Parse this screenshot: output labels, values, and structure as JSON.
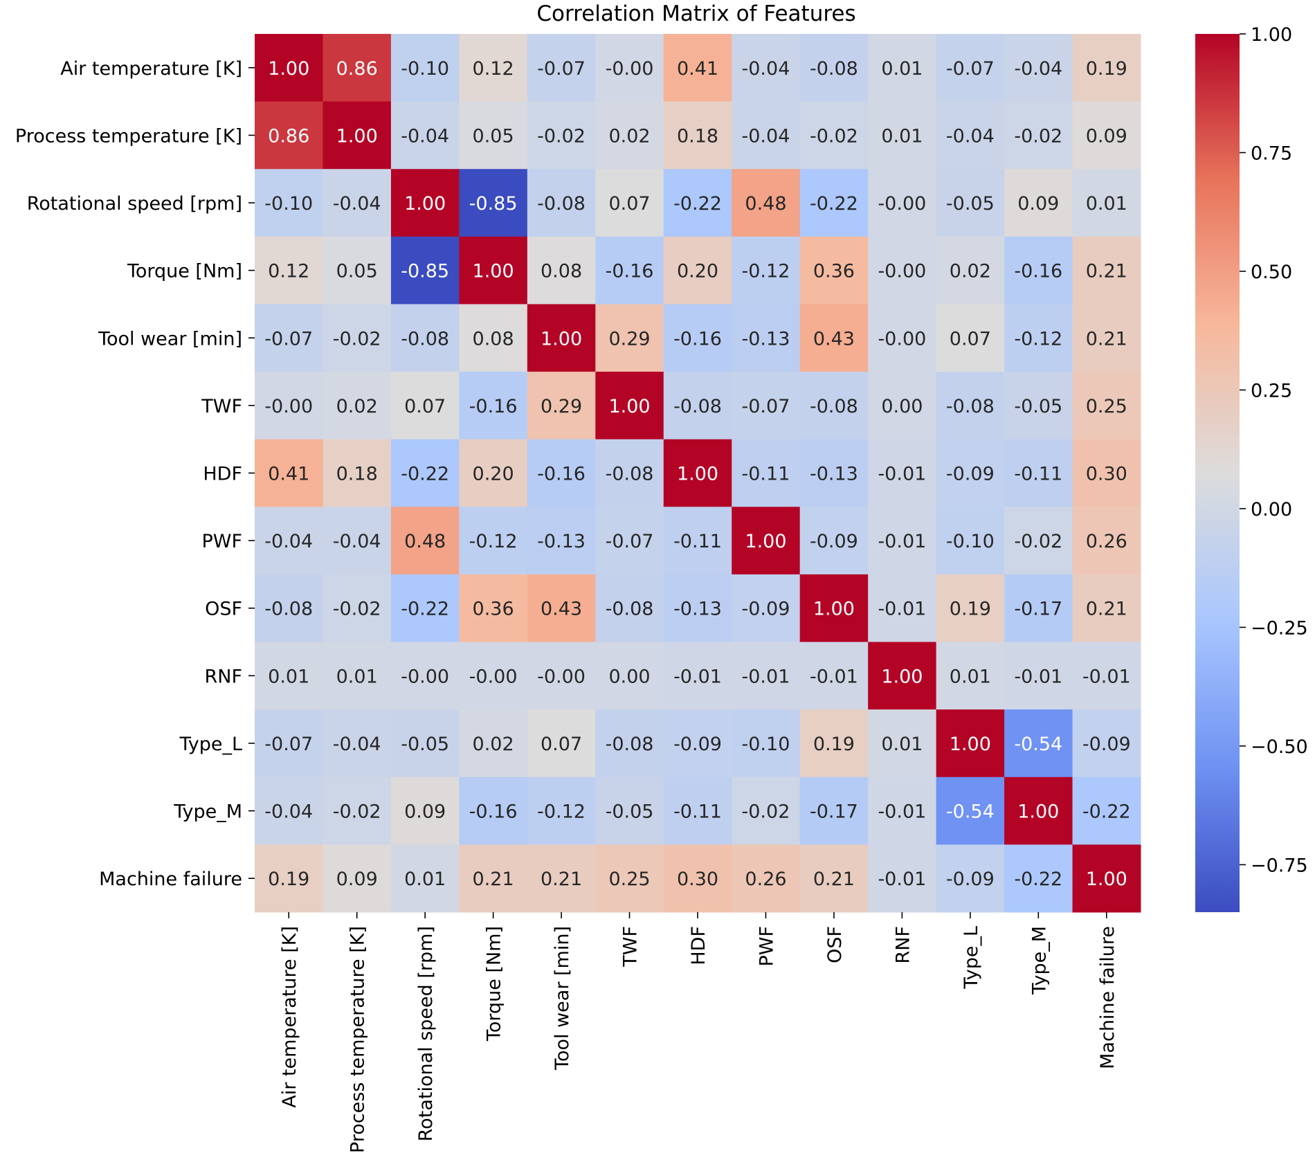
{
  "chart_data": {
    "type": "heatmap",
    "title": "Correlation Matrix of Features",
    "labels": [
      "Air temperature [K]",
      "Process temperature [K]",
      "Rotational speed [rpm]",
      "Torque [Nm]",
      "Tool wear [min]",
      "TWF",
      "HDF",
      "PWF",
      "OSF",
      "RNF",
      "Type_L",
      "Type_M",
      "Machine failure"
    ],
    "matrix": [
      [
        1.0,
        0.86,
        -0.1,
        0.12,
        -0.07,
        -0.0,
        0.41,
        -0.04,
        -0.08,
        0.01,
        -0.07,
        -0.04,
        0.19
      ],
      [
        0.86,
        1.0,
        -0.04,
        0.05,
        -0.02,
        0.02,
        0.18,
        -0.04,
        -0.02,
        0.01,
        -0.04,
        -0.02,
        0.09
      ],
      [
        -0.1,
        -0.04,
        1.0,
        -0.85,
        -0.08,
        0.07,
        -0.22,
        0.48,
        -0.22,
        -0.0,
        -0.05,
        0.09,
        0.01
      ],
      [
        0.12,
        0.05,
        -0.85,
        1.0,
        0.08,
        -0.16,
        0.2,
        -0.12,
        0.36,
        -0.0,
        0.02,
        -0.16,
        0.21
      ],
      [
        -0.07,
        -0.02,
        -0.08,
        0.08,
        1.0,
        0.29,
        -0.16,
        -0.13,
        0.43,
        -0.0,
        0.07,
        -0.12,
        0.21
      ],
      [
        -0.0,
        0.02,
        0.07,
        -0.16,
        0.29,
        1.0,
        -0.08,
        -0.07,
        -0.08,
        0.0,
        -0.08,
        -0.05,
        0.25
      ],
      [
        0.41,
        0.18,
        -0.22,
        0.2,
        -0.16,
        -0.08,
        1.0,
        -0.11,
        -0.13,
        -0.01,
        -0.09,
        -0.11,
        0.3
      ],
      [
        -0.04,
        -0.04,
        0.48,
        -0.12,
        -0.13,
        -0.07,
        -0.11,
        1.0,
        -0.09,
        -0.01,
        -0.1,
        -0.02,
        0.26
      ],
      [
        -0.08,
        -0.02,
        -0.22,
        0.36,
        0.43,
        -0.08,
        -0.13,
        -0.09,
        1.0,
        -0.01,
        0.19,
        -0.17,
        0.21
      ],
      [
        0.01,
        0.01,
        -0.0,
        -0.0,
        -0.0,
        0.0,
        -0.01,
        -0.01,
        -0.01,
        1.0,
        0.01,
        -0.01,
        -0.01
      ],
      [
        -0.07,
        -0.04,
        -0.05,
        0.02,
        0.07,
        -0.08,
        -0.09,
        -0.1,
        0.19,
        0.01,
        1.0,
        -0.54,
        -0.09
      ],
      [
        -0.04,
        -0.02,
        0.09,
        -0.16,
        -0.12,
        -0.05,
        -0.11,
        -0.02,
        -0.17,
        -0.01,
        -0.54,
        1.0,
        -0.22
      ],
      [
        0.19,
        0.09,
        0.01,
        0.21,
        0.21,
        0.25,
        0.3,
        0.26,
        0.21,
        -0.01,
        -0.09,
        -0.22,
        1.0
      ]
    ],
    "cell_labels": [
      [
        "1.00",
        "0.86",
        "-0.10",
        "0.12",
        "-0.07",
        "-0.00",
        "0.41",
        "-0.04",
        "-0.08",
        "0.01",
        "-0.07",
        "-0.04",
        "0.19"
      ],
      [
        "0.86",
        "1.00",
        "-0.04",
        "0.05",
        "-0.02",
        "0.02",
        "0.18",
        "-0.04",
        "-0.02",
        "0.01",
        "-0.04",
        "-0.02",
        "0.09"
      ],
      [
        "-0.10",
        "-0.04",
        "1.00",
        "-0.85",
        "-0.08",
        "0.07",
        "-0.22",
        "0.48",
        "-0.22",
        "-0.00",
        "-0.05",
        "0.09",
        "0.01"
      ],
      [
        "0.12",
        "0.05",
        "-0.85",
        "1.00",
        "0.08",
        "-0.16",
        "0.20",
        "-0.12",
        "0.36",
        "-0.00",
        "0.02",
        "-0.16",
        "0.21"
      ],
      [
        "-0.07",
        "-0.02",
        "-0.08",
        "0.08",
        "1.00",
        "0.29",
        "-0.16",
        "-0.13",
        "0.43",
        "-0.00",
        "0.07",
        "-0.12",
        "0.21"
      ],
      [
        "-0.00",
        "0.02",
        "0.07",
        "-0.16",
        "0.29",
        "1.00",
        "-0.08",
        "-0.07",
        "-0.08",
        "0.00",
        "-0.08",
        "-0.05",
        "0.25"
      ],
      [
        "0.41",
        "0.18",
        "-0.22",
        "0.20",
        "-0.16",
        "-0.08",
        "1.00",
        "-0.11",
        "-0.13",
        "-0.01",
        "-0.09",
        "-0.11",
        "0.30"
      ],
      [
        "-0.04",
        "-0.04",
        "0.48",
        "-0.12",
        "-0.13",
        "-0.07",
        "-0.11",
        "1.00",
        "-0.09",
        "-0.01",
        "-0.10",
        "-0.02",
        "0.26"
      ],
      [
        "-0.08",
        "-0.02",
        "-0.22",
        "0.36",
        "0.43",
        "-0.08",
        "-0.13",
        "-0.09",
        "1.00",
        "-0.01",
        "0.19",
        "-0.17",
        "0.21"
      ],
      [
        "0.01",
        "0.01",
        "-0.00",
        "-0.00",
        "-0.00",
        "0.00",
        "-0.01",
        "-0.01",
        "-0.01",
        "1.00",
        "0.01",
        "-0.01",
        "-0.01"
      ],
      [
        "-0.07",
        "-0.04",
        "-0.05",
        "0.02",
        "0.07",
        "-0.08",
        "-0.09",
        "-0.10",
        "0.19",
        "0.01",
        "1.00",
        "-0.54",
        "-0.09"
      ],
      [
        "-0.04",
        "-0.02",
        "0.09",
        "-0.16",
        "-0.12",
        "-0.05",
        "-0.11",
        "-0.02",
        "-0.17",
        "-0.01",
        "-0.54",
        "1.00",
        "-0.22"
      ],
      [
        "0.19",
        "0.09",
        "0.01",
        "0.21",
        "0.21",
        "0.25",
        "0.30",
        "0.26",
        "0.21",
        "-0.01",
        "-0.09",
        "-0.22",
        "1.00"
      ]
    ],
    "colormap": "coolwarm",
    "colormap_stops": [
      "#3b4cc0",
      "#6f92f3",
      "#aac7fd",
      "#dddcdc",
      "#f7b89c",
      "#e7745b",
      "#b40426"
    ],
    "vmin": -0.85,
    "vmax": 1.0,
    "colorbar_ticks": [
      1.0,
      0.75,
      0.5,
      0.25,
      0.0,
      -0.25,
      -0.5,
      -0.75
    ],
    "colorbar_tick_labels": [
      "1.00",
      "0.75",
      "0.50",
      "0.25",
      "0.00",
      "−0.25",
      "−0.50",
      "−0.75"
    ],
    "xlabel": "",
    "ylabel": ""
  }
}
